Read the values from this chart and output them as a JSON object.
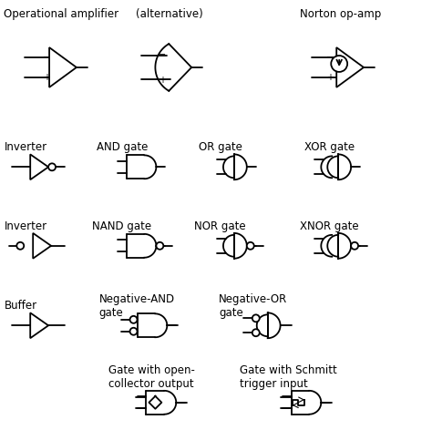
{
  "bg_color": "#ffffff",
  "line_color": "#000000",
  "lw": 1.3,
  "fig_width": 4.74,
  "fig_height": 4.72,
  "dpi": 100,
  "label_fontsize": 8.5,
  "labels": {
    "op_amp": "Operational amplifier",
    "alt": "(alternative)",
    "norton": "Norton op-amp",
    "inverter": "Inverter",
    "and": "AND gate",
    "or": "OR gate",
    "xor": "XOR gate",
    "inverter2": "Inverter",
    "nand": "NAND gate",
    "nor": "NOR gate",
    "xnor": "XNOR gate",
    "buffer": "Buffer",
    "neg_and": "Negative-AND\ngate",
    "neg_or": "Negative-OR\ngate",
    "open_col": "Gate with open-\ncollector output",
    "schmitt": "Gate with Schmitt\ntrigger input"
  }
}
